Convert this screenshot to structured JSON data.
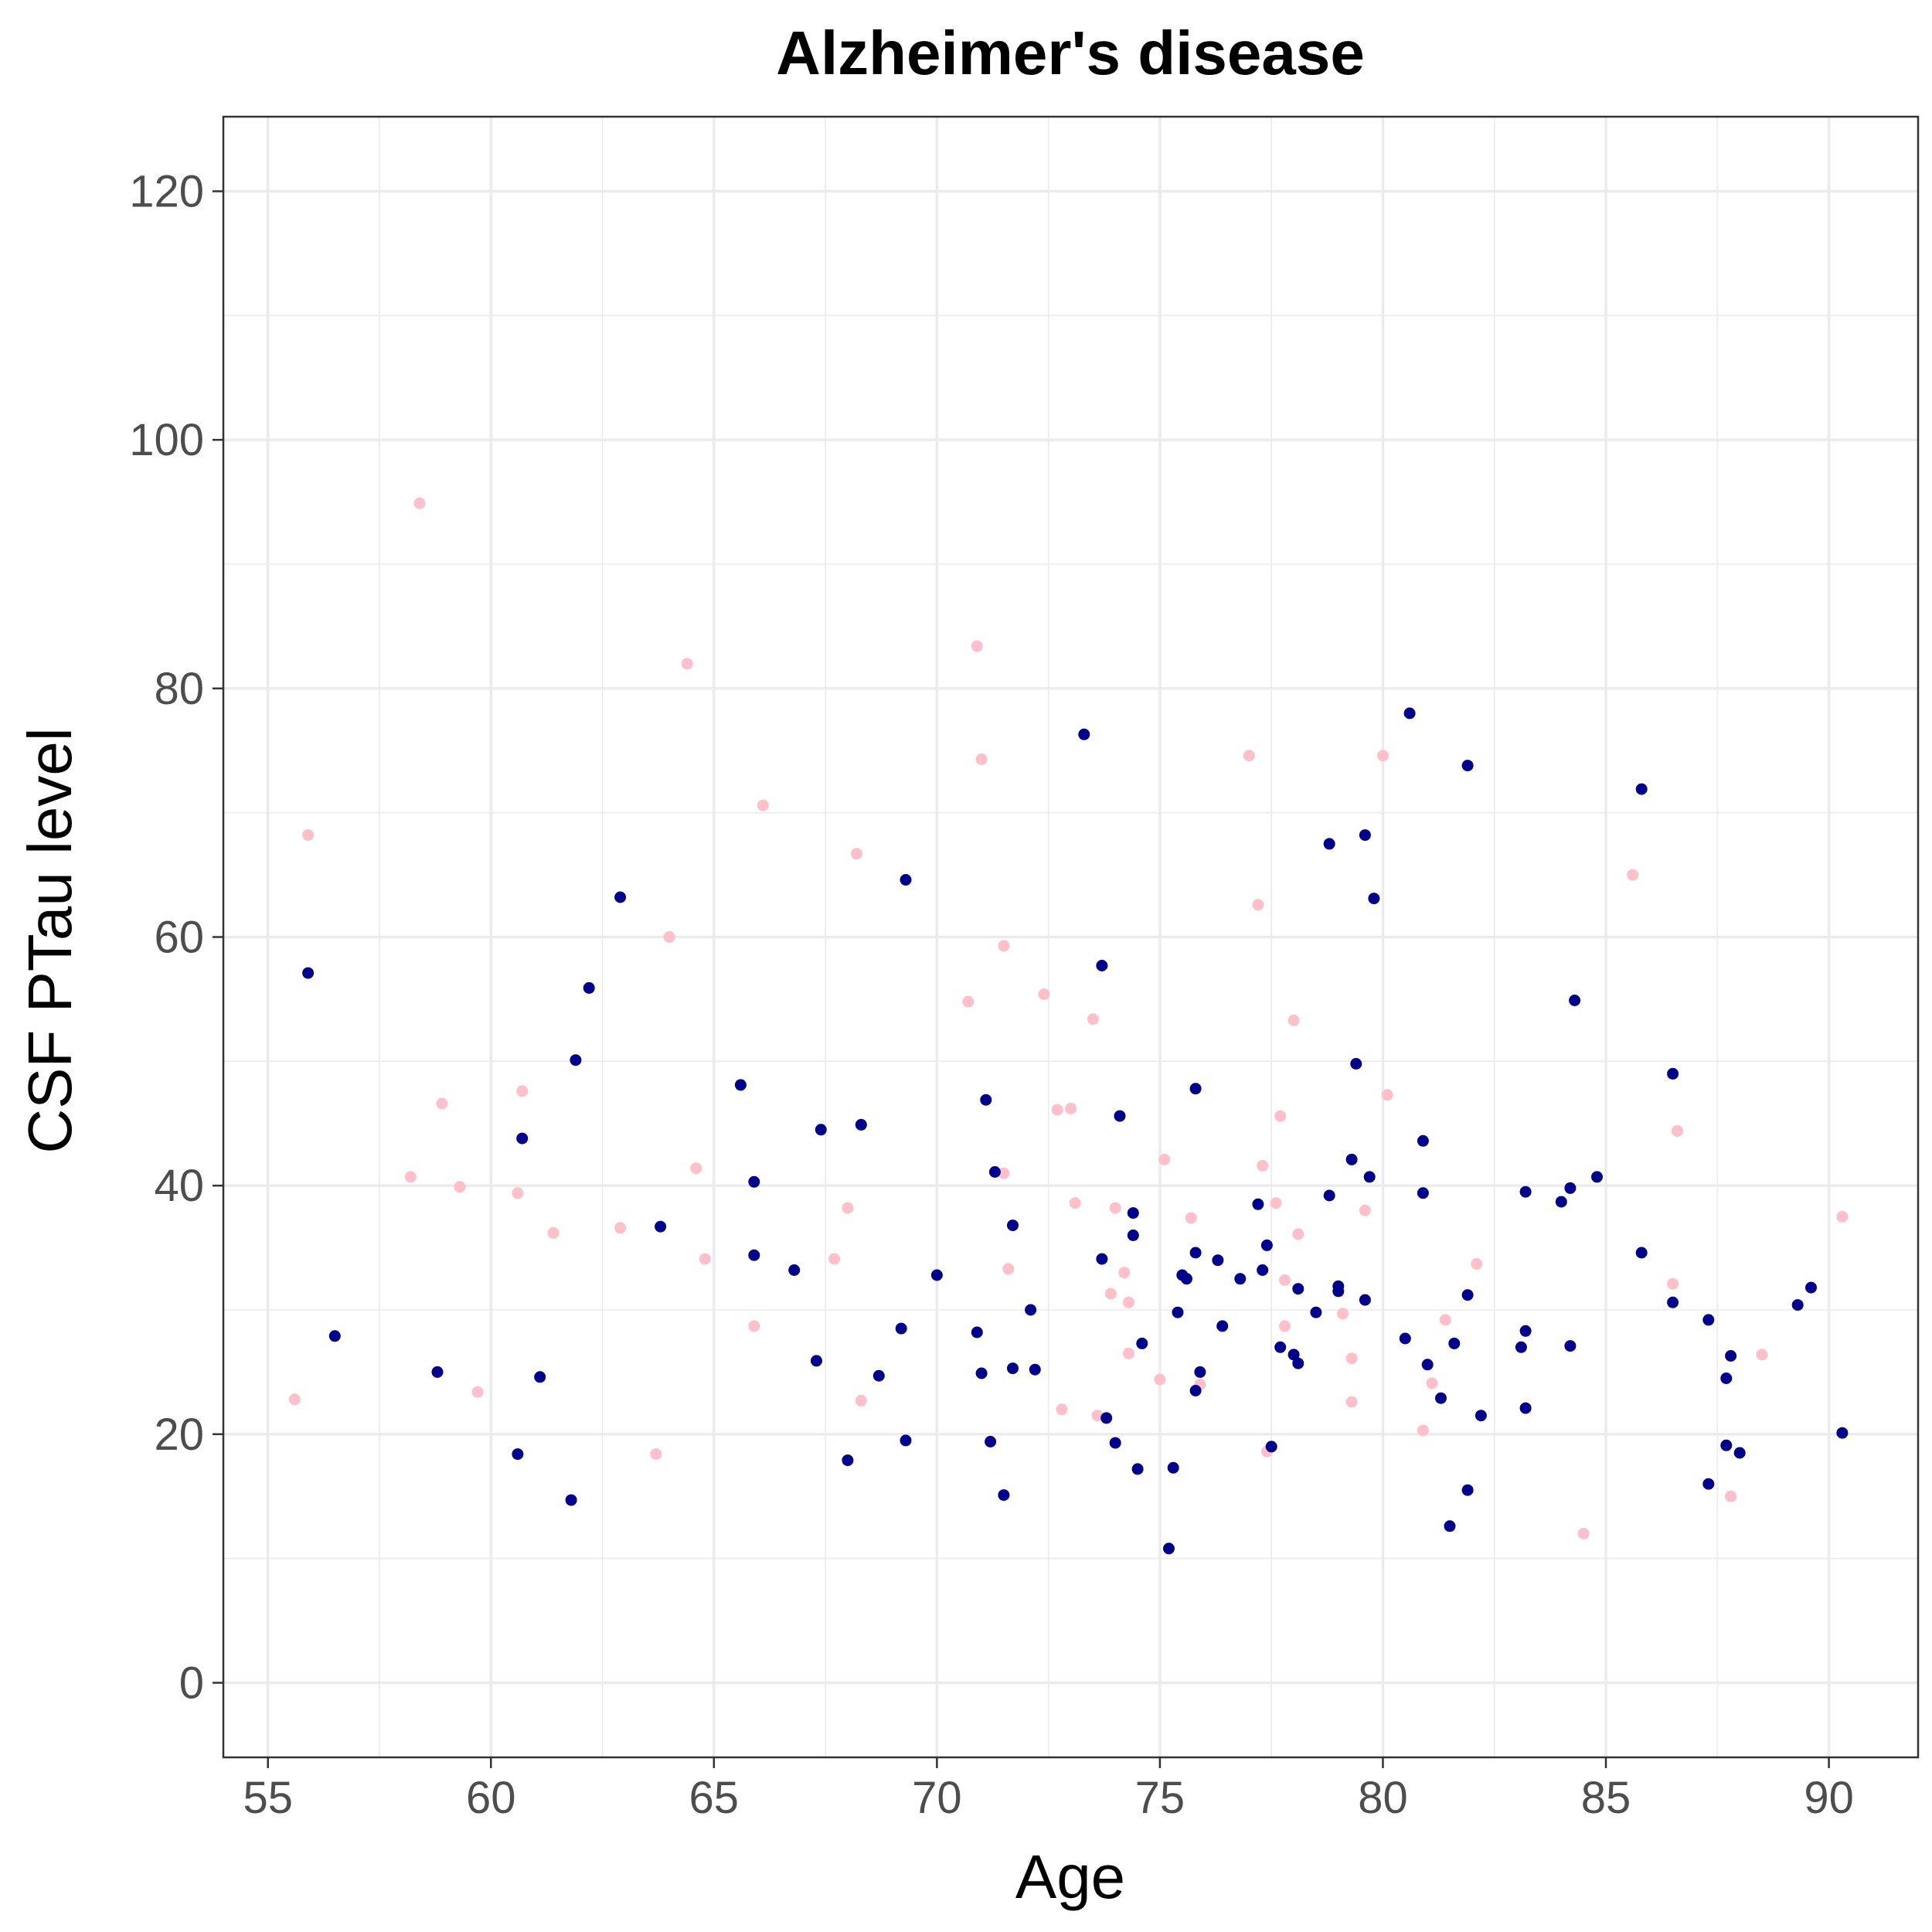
{
  "chart_data": {
    "type": "scatter",
    "title": "Alzheimer's disease",
    "xlabel": "Age",
    "ylabel": "CSF PTau level",
    "xlim": [
      54,
      92
    ],
    "ylim": [
      -6,
      126
    ],
    "x_ticks": [
      55,
      60,
      65,
      70,
      75,
      80,
      85,
      90
    ],
    "y_ticks": [
      0,
      20,
      40,
      60,
      80,
      100,
      120
    ],
    "x_tick_labels": [
      "55",
      "60",
      "65",
      "70",
      "75",
      "80",
      "85",
      "90"
    ],
    "y_tick_labels": [
      "0",
      "20",
      "40",
      "60",
      "80",
      "100",
      "120"
    ],
    "grid": true,
    "colors": {
      "series_a": "#00008b",
      "series_b": "#ffc0cb",
      "grid": "#ebebeb",
      "panel_border": "#333333"
    },
    "series": [
      {
        "color": "#ffc0cb",
        "x": [
          55.6,
          55.9,
          58.2,
          58.4,
          58.9,
          59.3,
          59.7,
          60.6,
          60.7,
          61.4,
          62.9,
          63.7,
          64.0,
          64.4,
          64.6,
          64.8,
          65.9,
          66.1,
          67.7,
          68.0,
          68.2,
          68.3,
          70.7,
          70.9,
          71.0,
          71.5,
          71.5,
          71.6,
          72.4,
          72.7,
          72.8,
          73.0,
          73.1,
          73.5,
          73.6,
          73.9,
          74.0,
          74.2,
          74.3,
          74.3,
          75.0,
          75.1,
          75.7,
          75.9,
          77.0,
          77.2,
          77.3,
          77.4,
          77.6,
          77.7,
          77.8,
          77.8,
          78.0,
          78.1,
          79.1,
          79.3,
          79.3,
          79.6,
          80.0,
          80.1,
          80.9,
          81.1,
          81.4,
          82.1,
          84.5,
          85.6,
          86.5,
          86.6,
          87.8,
          88.5,
          90.3
        ],
        "y": [
          22.8,
          68.2,
          40.7,
          94.9,
          46.6,
          39.9,
          23.4,
          39.4,
          47.6,
          36.2,
          36.6,
          18.4,
          60.0,
          82.0,
          41.4,
          34.1,
          28.7,
          70.6,
          34.1,
          38.2,
          66.7,
          22.7,
          54.8,
          83.4,
          74.3,
          59.3,
          41.0,
          33.3,
          55.4,
          46.1,
          22.0,
          46.2,
          38.6,
          53.4,
          21.5,
          31.3,
          38.2,
          33.0,
          26.5,
          30.6,
          24.4,
          42.1,
          37.4,
          24.0,
          74.6,
          62.6,
          41.6,
          18.6,
          38.6,
          45.6,
          32.4,
          28.7,
          53.3,
          36.1,
          29.7,
          26.1,
          22.6,
          38.0,
          74.6,
          47.3,
          20.3,
          24.1,
          29.2,
          33.7,
          12.0,
          65.0,
          32.1,
          44.4,
          15.0,
          26.4,
          37.5
        ]
      },
      {
        "color": "#00008b",
        "x": [
          55.9,
          56.5,
          58.8,
          60.6,
          60.7,
          61.1,
          61.8,
          61.9,
          62.2,
          62.9,
          63.8,
          65.6,
          65.9,
          65.9,
          66.8,
          67.3,
          67.4,
          68.0,
          68.3,
          68.7,
          69.2,
          69.3,
          69.3,
          70.0,
          70.9,
          71.0,
          71.1,
          71.2,
          71.3,
          71.5,
          71.7,
          71.7,
          72.1,
          72.2,
          73.3,
          73.7,
          73.7,
          73.8,
          74.0,
          74.1,
          74.4,
          74.4,
          74.5,
          74.6,
          75.2,
          75.3,
          75.4,
          75.5,
          75.6,
          75.8,
          75.8,
          75.8,
          75.9,
          76.3,
          76.4,
          76.8,
          77.2,
          77.3,
          77.4,
          77.5,
          77.7,
          78.0,
          78.1,
          78.1,
          78.5,
          78.8,
          78.8,
          79.0,
          79.0,
          79.3,
          79.4,
          79.6,
          79.6,
          79.7,
          79.8,
          80.5,
          80.6,
          80.9,
          80.9,
          81.0,
          81.3,
          81.5,
          81.6,
          81.9,
          81.9,
          81.9,
          82.2,
          83.1,
          83.2,
          83.2,
          83.2,
          84.0,
          84.2,
          84.2,
          84.3,
          84.8,
          85.8,
          85.8,
          86.5,
          86.5,
          87.3,
          87.3,
          87.7,
          87.7,
          87.8,
          88.0,
          89.3,
          89.6,
          90.3
        ],
        "y": [
          57.1,
          27.9,
          25.0,
          18.4,
          43.8,
          24.6,
          14.7,
          50.1,
          55.9,
          63.2,
          36.7,
          48.1,
          40.3,
          34.4,
          33.2,
          25.9,
          44.5,
          17.9,
          44.9,
          24.7,
          28.5,
          64.6,
          19.5,
          32.8,
          28.2,
          24.9,
          46.9,
          19.4,
          41.1,
          15.1,
          25.3,
          36.8,
          30.0,
          25.2,
          76.3,
          57.7,
          34.1,
          21.3,
          19.3,
          45.6,
          37.8,
          36.0,
          17.2,
          27.3,
          10.8,
          17.3,
          29.8,
          32.8,
          32.5,
          34.6,
          47.8,
          23.5,
          25.0,
          34.0,
          28.7,
          32.5,
          38.5,
          33.2,
          35.2,
          19.0,
          27.0,
          26.4,
          31.7,
          25.7,
          29.8,
          39.2,
          67.5,
          31.9,
          31.5,
          42.1,
          49.8,
          68.2,
          30.8,
          40.7,
          63.1,
          27.7,
          78.0,
          43.6,
          39.4,
          25.6,
          22.9,
          12.6,
          27.3,
          73.8,
          31.2,
          15.5,
          21.5,
          27.0,
          39.5,
          28.3,
          22.1,
          38.7,
          39.8,
          27.1,
          54.9,
          40.7,
          71.9,
          34.6,
          30.6,
          49.0,
          29.2,
          16.0,
          24.5,
          19.1,
          26.3,
          18.5,
          30.4,
          31.8,
          20.1
        ]
      }
    ]
  }
}
